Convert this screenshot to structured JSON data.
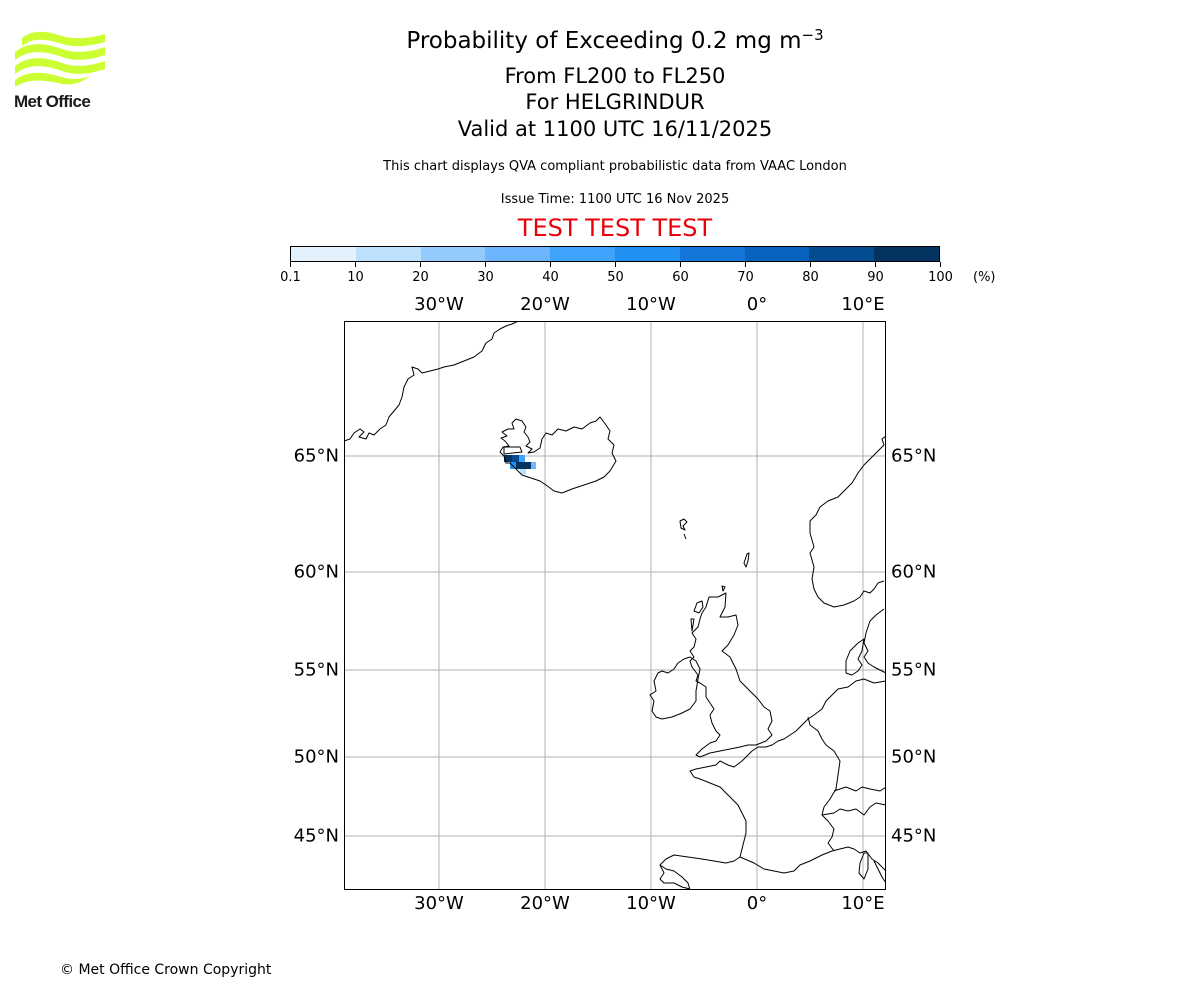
{
  "logo": {
    "name": "Met Office",
    "color": "#ccff33"
  },
  "header": {
    "title_main": "Probability of Exceeding 0.2 mg m",
    "title_superscript": "−3",
    "level_range": "From FL200 to FL250",
    "volcano": "For HELGRINDUR",
    "valid_time": "Valid at 1100 UTC 16/11/2025",
    "description": "This chart displays QVA compliant probabilistic data from VAAC London",
    "issue_time": "Issue Time: 1100 UTC 16 Nov 2025",
    "test_banner": "TEST TEST TEST",
    "test_banner_color": "#e8000b"
  },
  "colorbar": {
    "unit": "(%)",
    "ticks": [
      "0.1",
      "10",
      "20",
      "30",
      "40",
      "50",
      "60",
      "70",
      "80",
      "90",
      "100"
    ],
    "colors": [
      "#e3f1fd",
      "#bde0fd",
      "#95cafd",
      "#6bb6fd",
      "#3fa3fc",
      "#2090f2",
      "#1376d8",
      "#0863be",
      "#034c90",
      "#04335f"
    ]
  },
  "map": {
    "lon_labels": [
      "30°W",
      "20°W",
      "10°W",
      "0°",
      "10°E"
    ],
    "lat_labels": [
      "65°N",
      "60°N",
      "55°N",
      "50°N",
      "45°N"
    ]
  },
  "chart_data": {
    "type": "heatmap",
    "title": "Probability of Exceeding 0.2 mg m−3",
    "subtitle": [
      "From FL200 to FL250",
      "For HELGRINDUR",
      "Valid at 1100 UTC 16/11/2025"
    ],
    "colorbar": {
      "bins": [
        0.1,
        10,
        20,
        30,
        40,
        50,
        60,
        70,
        80,
        90,
        100
      ],
      "unit": "%"
    },
    "extent": {
      "lon": [
        -39,
        12
      ],
      "lat": [
        42.5,
        70
      ]
    },
    "xticks": [
      "30°W",
      "20°W",
      "10°W",
      "0°",
      "10°E"
    ],
    "yticks": [
      "65°N",
      "60°N",
      "55°N",
      "50°N",
      "45°N"
    ],
    "grid": true,
    "cells": [
      {
        "lon": -23.0,
        "lat": 64.9,
        "prob_bin": "90-100"
      },
      {
        "lon": -22.6,
        "lat": 64.9,
        "prob_bin": "80-90"
      },
      {
        "lon": -22.0,
        "lat": 64.9,
        "prob_bin": "40-50"
      },
      {
        "lon": -22.4,
        "lat": 64.6,
        "prob_bin": "50-60"
      },
      {
        "lon": -21.9,
        "lat": 64.6,
        "prob_bin": "90-100"
      },
      {
        "lon": -21.4,
        "lat": 64.6,
        "prob_bin": "90-100"
      },
      {
        "lon": -20.8,
        "lat": 64.6,
        "prob_bin": "30-40"
      },
      {
        "lon": -21.6,
        "lat": 64.3,
        "prob_bin": "10-20"
      }
    ]
  },
  "footer": {
    "copyright": "© Met Office Crown Copyright"
  }
}
